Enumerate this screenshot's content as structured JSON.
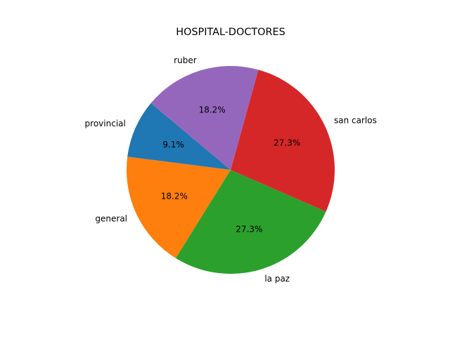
{
  "chart_data": {
    "type": "pie",
    "title": "HOSPITAL-DOCTORES",
    "labels": [
      "provincial",
      "general",
      "la paz",
      "san carlos",
      "ruber"
    ],
    "values": [
      1,
      2,
      3,
      3,
      2
    ],
    "percent_labels": [
      "9.1%",
      "18.2%",
      "27.3%",
      "27.3%",
      "18.2%"
    ],
    "colors": [
      "#1f77b4",
      "#ff7f0e",
      "#2ca02c",
      "#d62728",
      "#9467bd"
    ],
    "start_angle_deg": 140,
    "direction": "counterclockwise"
  }
}
